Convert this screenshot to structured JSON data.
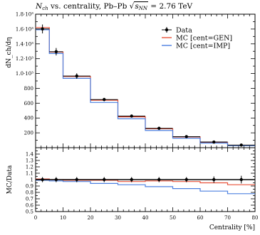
{
  "title": {
    "n_main": "N",
    "n_sub": "ch",
    "mid": " vs. centrality, Pb–Pb ",
    "sqrt_symbol": "√",
    "sqrt_main": "s",
    "sqrt_sub": "NN",
    "energy": " = 2.76 TeV"
  },
  "chart_data": [
    {
      "type": "line",
      "panel": "main",
      "ylabel": "dN_ch/dη",
      "xlim": [
        0,
        80
      ],
      "ylim": [
        0,
        1800
      ],
      "x_edges": [
        0,
        5,
        10,
        20,
        30,
        40,
        50,
        60,
        70,
        80
      ],
      "yticks": [
        {
          "v": 200,
          "label": "200"
        },
        {
          "v": 400,
          "label": "400"
        },
        {
          "v": 600,
          "label": "600"
        },
        {
          "v": 800,
          "label": "800"
        },
        {
          "v": 1000,
          "label": "1.0·10³"
        },
        {
          "v": 1200,
          "label": "1.2·10³"
        },
        {
          "v": 1400,
          "label": "1.4·10³"
        },
        {
          "v": 1600,
          "label": "1.6·10³"
        },
        {
          "v": 1800,
          "label": "1.8·10³"
        }
      ],
      "legend_position": "top-right",
      "series": [
        {
          "name": "Data",
          "style": "points",
          "color": "#000000",
          "x": [
            2.5,
            7.5,
            15,
            25,
            35,
            45,
            55,
            65,
            75
          ],
          "values": [
            1601,
            1294,
            966,
            649,
            426,
            261,
            149,
            76,
            35
          ],
          "errors": [
            60,
            50,
            37,
            23,
            15,
            9,
            6,
            4,
            2
          ]
        },
        {
          "name": "MC [cent=GEN]",
          "style": "step",
          "color": "#e8523a",
          "values": [
            1620,
            1290,
            960,
            640,
            415,
            255,
            145,
            72,
            32
          ]
        },
        {
          "name": "MC [cent=IMP]",
          "style": "step",
          "color": "#4d80e0",
          "values": [
            1590,
            1270,
            935,
            610,
            390,
            232,
            128,
            62,
            27
          ]
        }
      ]
    },
    {
      "type": "line",
      "panel": "ratio",
      "xlabel": "Centrality [%]",
      "ylabel": "MC/Data",
      "xlim": [
        0,
        80
      ],
      "ylim": [
        0.5,
        1.5
      ],
      "xticks": [
        0,
        10,
        20,
        30,
        40,
        50,
        60,
        70,
        80
      ],
      "yticks": [
        0.5,
        0.6,
        0.7,
        0.8,
        0.9,
        1,
        1.1,
        1.2,
        1.3,
        1.4
      ],
      "series": [
        {
          "name": "Data",
          "style": "points",
          "color": "#000000",
          "x": [
            2.5,
            7.5,
            15,
            25,
            35,
            45,
            55,
            65,
            75
          ],
          "values": [
            1,
            1,
            1,
            1,
            1,
            1,
            1,
            1,
            1
          ],
          "errors": [
            0.04,
            0.04,
            0.04,
            0.04,
            0.04,
            0.04,
            0.04,
            0.05,
            0.06
          ]
        },
        {
          "name": "MC [cent=GEN]",
          "style": "step",
          "color": "#e8523a",
          "values": [
            1.01,
            1.0,
            0.99,
            0.99,
            0.97,
            0.98,
            0.97,
            0.95,
            0.92
          ]
        },
        {
          "name": "MC [cent=IMP]",
          "style": "step",
          "color": "#4d80e0",
          "values": [
            0.99,
            0.98,
            0.97,
            0.94,
            0.92,
            0.89,
            0.86,
            0.82,
            0.78
          ]
        }
      ]
    }
  ]
}
